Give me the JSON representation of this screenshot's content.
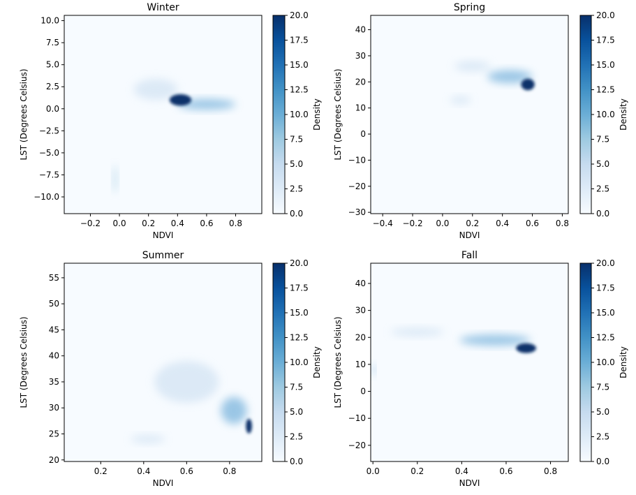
{
  "colors": {
    "blue_light": "#f7fbff",
    "blue_mid": "#6baed6",
    "blue_dark": "#08306b"
  },
  "chart_data": [
    {
      "type": "heatmap",
      "title": "Winter",
      "xlabel": "NDVI",
      "ylabel": "LST (Degrees Celsius)",
      "colorbar_label": "Density",
      "xlim": [
        -0.38,
        0.98
      ],
      "ylim": [
        -11.9,
        10.6
      ],
      "xticks": [
        -0.2,
        0.0,
        0.2,
        0.4,
        0.6,
        0.8
      ],
      "xtick_labels": [
        "−0.2",
        "0.0",
        "0.2",
        "0.4",
        "0.6",
        "0.8"
      ],
      "yticks": [
        -10.0,
        -7.5,
        -5.0,
        -2.5,
        0.0,
        2.5,
        5.0,
        7.5,
        10.0
      ],
      "ytick_labels": [
        "−10.0",
        "−7.5",
        "−5.0",
        "−2.5",
        "0.0",
        "2.5",
        "5.0",
        "7.5",
        "10.0"
      ],
      "colorbar_range": [
        0,
        20
      ],
      "colorbar_ticks": [
        "0.0",
        "2.5",
        "5.0",
        "7.5",
        "10.0",
        "12.5",
        "15.0",
        "17.5",
        "20.0"
      ],
      "density_clusters": [
        {
          "x": 0.42,
          "y": 1.0,
          "sx": 0.075,
          "sy": 0.65,
          "density": 20
        },
        {
          "x": 0.6,
          "y": 0.5,
          "sx": 0.2,
          "sy": 0.6,
          "density": 6
        },
        {
          "x": 0.25,
          "y": 2.2,
          "sx": 0.15,
          "sy": 1.2,
          "density": 2
        },
        {
          "x": -0.03,
          "y": -8.0,
          "sx": 0.015,
          "sy": 1.6,
          "density": 4
        }
      ]
    },
    {
      "type": "heatmap",
      "title": "Spring",
      "xlabel": "NDVI",
      "ylabel": "LST (Degrees Celsius)",
      "colorbar_label": "Density",
      "xlim": [
        -0.48,
        0.84
      ],
      "ylim": [
        -30.5,
        45.5
      ],
      "xticks": [
        -0.4,
        -0.2,
        0.0,
        0.2,
        0.4,
        0.6,
        0.8
      ],
      "xtick_labels": [
        "−0.4",
        "−0.2",
        "0.0",
        "0.2",
        "0.4",
        "0.6",
        "0.8"
      ],
      "yticks": [
        -30,
        -20,
        -10,
        0,
        10,
        20,
        30,
        40
      ],
      "ytick_labels": [
        "−30",
        "−20",
        "−10",
        "0",
        "10",
        "20",
        "30",
        "40"
      ],
      "colorbar_range": [
        0,
        20
      ],
      "colorbar_ticks": [
        "0.0",
        "2.5",
        "5.0",
        "7.5",
        "10.0",
        "12.5",
        "15.0",
        "17.5",
        "20.0"
      ],
      "density_clusters": [
        {
          "x": 0.57,
          "y": 19.0,
          "sx": 0.045,
          "sy": 2.2,
          "density": 20
        },
        {
          "x": 0.45,
          "y": 22.0,
          "sx": 0.15,
          "sy": 2.5,
          "density": 6
        },
        {
          "x": 0.2,
          "y": 26.0,
          "sx": 0.12,
          "sy": 2.0,
          "density": 2
        },
        {
          "x": 0.12,
          "y": 13.0,
          "sx": 0.07,
          "sy": 1.5,
          "density": 2
        }
      ]
    },
    {
      "type": "heatmap",
      "title": "Summer",
      "xlabel": "NDVI",
      "ylabel": "LST (Degrees Celsius)",
      "colorbar_label": "Density",
      "xlim": [
        0.03,
        0.95
      ],
      "ylim": [
        19.7,
        57.8
      ],
      "xticks": [
        0.2,
        0.4,
        0.6,
        0.8
      ],
      "xtick_labels": [
        "0.2",
        "0.4",
        "0.6",
        "0.8"
      ],
      "yticks": [
        20,
        25,
        30,
        35,
        40,
        45,
        50,
        55
      ],
      "ytick_labels": [
        "20",
        "25",
        "30",
        "35",
        "40",
        "45",
        "50",
        "55"
      ],
      "colorbar_range": [
        0,
        20
      ],
      "colorbar_ticks": [
        "0.0",
        "2.5",
        "5.0",
        "7.5",
        "10.0",
        "12.5",
        "15.0",
        "17.5",
        "20.0"
      ],
      "density_clusters": [
        {
          "x": 0.89,
          "y": 26.5,
          "sx": 0.014,
          "sy": 1.4,
          "density": 20
        },
        {
          "x": 0.82,
          "y": 29.5,
          "sx": 0.06,
          "sy": 2.6,
          "density": 6
        },
        {
          "x": 0.6,
          "y": 35.0,
          "sx": 0.15,
          "sy": 4.0,
          "density": 2
        },
        {
          "x": 0.42,
          "y": 24.0,
          "sx": 0.08,
          "sy": 0.8,
          "density": 2
        }
      ]
    },
    {
      "type": "heatmap",
      "title": "Fall",
      "xlabel": "NDVI",
      "ylabel": "LST (Degrees Celsius)",
      "colorbar_label": "Density",
      "xlim": [
        -0.01,
        0.88
      ],
      "ylim": [
        -26.0,
        47.5
      ],
      "xticks": [
        0.0,
        0.2,
        0.4,
        0.6,
        0.8
      ],
      "xtick_labels": [
        "0.0",
        "0.2",
        "0.4",
        "0.6",
        "0.8"
      ],
      "yticks": [
        -20,
        -10,
        0,
        10,
        20,
        30,
        40
      ],
      "ytick_labels": [
        "−20",
        "−10",
        "0",
        "10",
        "20",
        "30",
        "40"
      ],
      "colorbar_range": [
        0,
        20
      ],
      "colorbar_ticks": [
        "0.0",
        "2.5",
        "5.0",
        "7.5",
        "10.0",
        "12.5",
        "15.0",
        "17.5",
        "20.0"
      ],
      "density_clusters": [
        {
          "x": 0.69,
          "y": 16.0,
          "sx": 0.045,
          "sy": 1.8,
          "density": 20
        },
        {
          "x": 0.55,
          "y": 19.0,
          "sx": 0.16,
          "sy": 2.0,
          "density": 6
        },
        {
          "x": 0.2,
          "y": 22.0,
          "sx": 0.12,
          "sy": 1.6,
          "density": 2
        },
        {
          "x": 0.005,
          "y": 8.0,
          "sx": 0.006,
          "sy": 2.0,
          "density": 5
        }
      ]
    }
  ]
}
